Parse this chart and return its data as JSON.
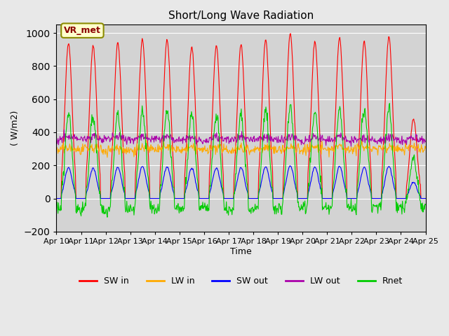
{
  "title": "Short/Long Wave Radiation",
  "ylabel": "( W/m2)",
  "xlabel": "Time",
  "annotation": "VR_met",
  "ylim": [
    -200,
    1050
  ],
  "background_color": "#e8e8e8",
  "plot_bg_color": "#d3d3d3",
  "legend_labels": [
    "SW in",
    "LW in",
    "SW out",
    "LW out",
    "Rnet"
  ],
  "colors": [
    "#ff0000",
    "#ffaa00",
    "#0000ff",
    "#aa00aa",
    "#00cc00"
  ],
  "x_tick_labels": [
    "Apr 10",
    "Apr 11",
    "Apr 12",
    "Apr 13",
    "Apr 14",
    "Apr 15",
    "Apr 16",
    "Apr 17",
    "Apr 18",
    "Apr 19",
    "Apr 20",
    "Apr 21",
    "Apr 22",
    "Apr 23",
    "Apr 24",
    "Apr 25"
  ],
  "daily_peaks_sw": [
    940,
    920,
    940,
    960,
    960,
    920,
    920,
    930,
    960,
    1000,
    950,
    970,
    950,
    980,
    480
  ],
  "n_days": 15,
  "points_per_day": 48
}
